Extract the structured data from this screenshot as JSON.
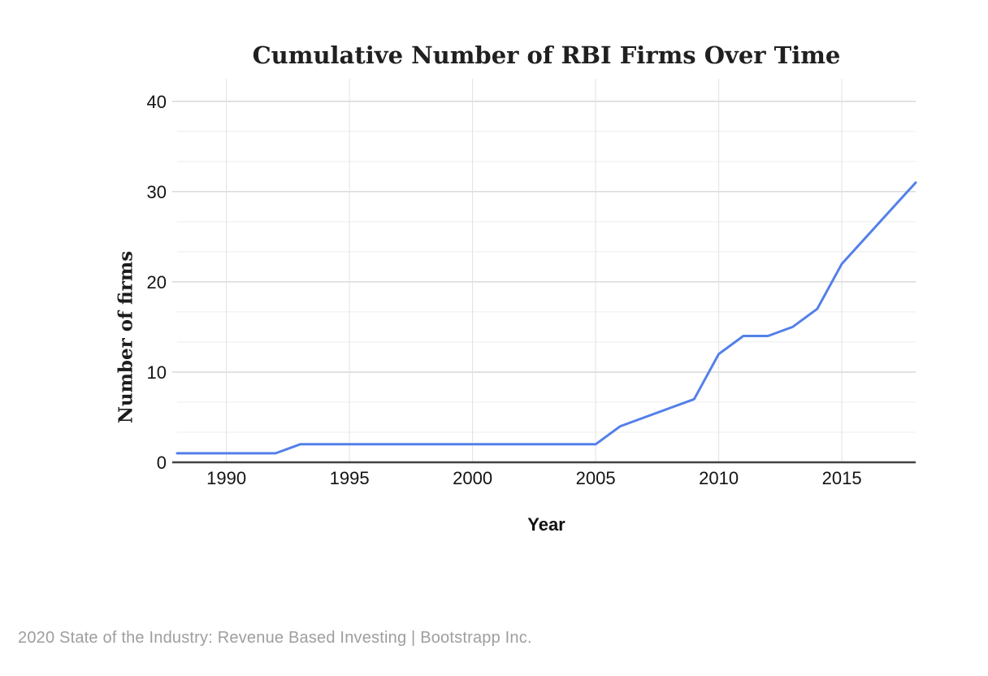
{
  "page": {
    "footer": "2020 State of the Industry: Revenue Based Investing  |  Bootstrapp Inc."
  },
  "chart_data": {
    "type": "line",
    "title": "Cumulative Number of RBI Firms Over Time",
    "xlabel": "Year",
    "ylabel": "Number of firms",
    "x": [
      1988,
      1989,
      1990,
      1991,
      1992,
      1993,
      1994,
      1995,
      1996,
      1997,
      1998,
      1999,
      2000,
      2001,
      2002,
      2003,
      2004,
      2005,
      2006,
      2007,
      2008,
      2009,
      2010,
      2011,
      2012,
      2013,
      2014,
      2015,
      2016,
      2017,
      2018
    ],
    "series": [
      {
        "name": "Cumulative RBI firms",
        "values": [
          1,
          1,
          1,
          1,
          1,
          2,
          2,
          2,
          2,
          2,
          2,
          2,
          2,
          2,
          2,
          2,
          2,
          2,
          4,
          5,
          6,
          7,
          12,
          14,
          14,
          15,
          17,
          22,
          25,
          28,
          31
        ]
      }
    ],
    "x_ticks": [
      1990,
      1995,
      2000,
      2005,
      2010,
      2015
    ],
    "y_ticks": [
      0,
      10,
      20,
      30,
      40
    ],
    "xlim": [
      1988,
      2018
    ],
    "ylim": [
      0,
      42.5
    ],
    "y_minor_divisions_per_major": 3,
    "grid": "on",
    "legend": "none",
    "colors": {
      "line": "#5380e9",
      "axis": "#424242",
      "grid_major": "#c6c6c6",
      "grid_minor": "#ededed",
      "grid_vertical": "#e2e2e2",
      "tick_label": "#131313",
      "title": "#202020",
      "footer": "#9e9e9e"
    }
  }
}
